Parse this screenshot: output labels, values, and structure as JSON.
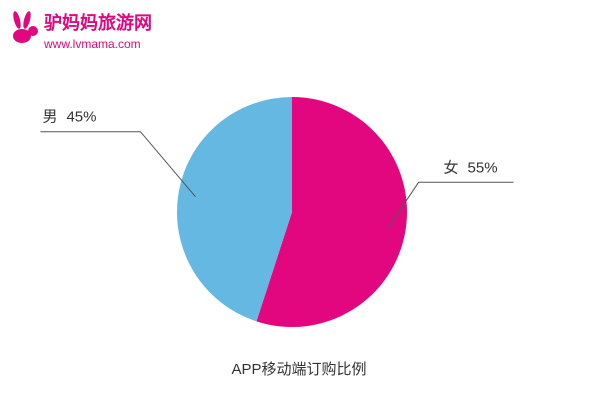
{
  "logo": {
    "name": "驴妈妈旅游网",
    "url": "www.lvmama.com"
  },
  "chart_data": {
    "type": "pie",
    "title": "APP移动端订购比例",
    "categories": [
      "女",
      "男"
    ],
    "values": [
      55,
      45
    ],
    "value_labels": [
      "55%",
      "45%"
    ],
    "colors": [
      "#e2077e",
      "#64b8e2"
    ]
  }
}
